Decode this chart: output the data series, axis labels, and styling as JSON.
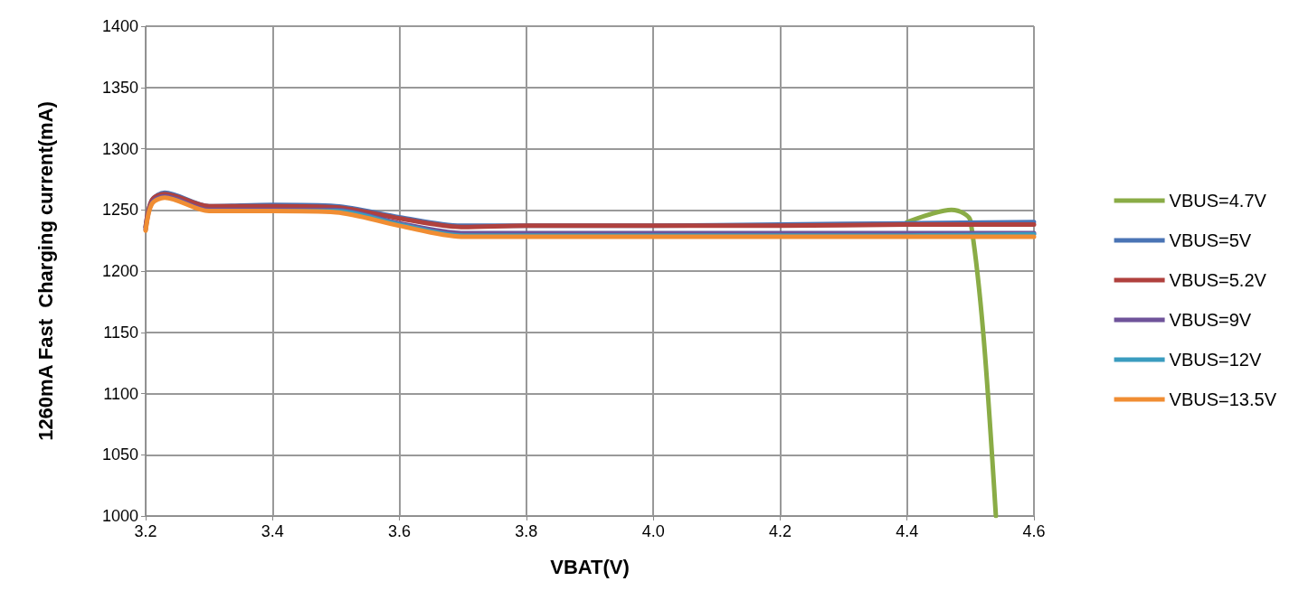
{
  "chart_data": {
    "type": "line",
    "xlabel": "VBAT(V)",
    "ylabel": "1260mA Fast  Charging current(mA)",
    "xlim": [
      3.2,
      4.6
    ],
    "xticks": [
      {
        "value": 3.2,
        "label": "3.2"
      },
      {
        "value": 3.4,
        "label": "3.4"
      },
      {
        "value": 3.6,
        "label": "3.6"
      },
      {
        "value": 3.8,
        "label": "3.8"
      },
      {
        "value": 4.0,
        "label": "4.0"
      },
      {
        "value": 4.2,
        "label": "4.2"
      },
      {
        "value": 4.4,
        "label": "4.4"
      },
      {
        "value": 4.6,
        "label": "4.6"
      }
    ],
    "ylim": [
      1000,
      1400
    ],
    "yticks": [
      1000,
      1050,
      1100,
      1150,
      1200,
      1250,
      1300,
      1350,
      1400
    ],
    "grid": true,
    "legend": "right",
    "marker": "none",
    "line_style": "solid",
    "series": [
      {
        "name": "VBUS=4.7V",
        "color": "#8aac46",
        "x": [
          4.4,
          4.44,
          4.47,
          4.49,
          4.5,
          4.52,
          4.54
        ],
        "values": [
          1240,
          1247,
          1250,
          1247,
          1241,
          1150,
          1000
        ]
      },
      {
        "name": "VBUS=5V",
        "color": "#4a74b5",
        "x": [
          3.2,
          3.21,
          3.23,
          3.3,
          3.4,
          3.5,
          3.6,
          3.7,
          3.8,
          4.0,
          4.2,
          4.4,
          4.6
        ],
        "values": [
          1236,
          1258,
          1264,
          1253,
          1254,
          1253,
          1244,
          1237,
          1237,
          1237,
          1238,
          1239,
          1240
        ]
      },
      {
        "name": "VBUS=5.2V",
        "color": "#b0413e",
        "x": [
          3.2,
          3.21,
          3.23,
          3.3,
          3.4,
          3.5,
          3.6,
          3.7,
          3.8,
          4.0,
          4.2,
          4.4,
          4.6
        ],
        "values": [
          1236,
          1258,
          1263,
          1253,
          1253,
          1252,
          1243,
          1236,
          1237,
          1237,
          1237,
          1238,
          1238
        ]
      },
      {
        "name": "VBUS=9V",
        "color": "#6f539a",
        "x": [
          3.2,
          3.21,
          3.23,
          3.3,
          3.4,
          3.5,
          3.6,
          3.7,
          3.8,
          4.0,
          4.2,
          4.4,
          4.6
        ],
        "values": [
          1234,
          1256,
          1261,
          1250,
          1250,
          1250,
          1239,
          1231,
          1231,
          1231,
          1231,
          1231,
          1231
        ]
      },
      {
        "name": "VBUS=12V",
        "color": "#3a9cbf",
        "x": [
          3.4,
          3.5,
          3.6,
          3.7,
          3.8,
          4.0,
          4.2,
          4.4,
          4.6
        ],
        "values": [
          1249,
          1249,
          1238,
          1229,
          1229,
          1229,
          1229,
          1229,
          1230
        ]
      },
      {
        "name": "VBUS=13.5V",
        "color": "#f08d33",
        "x": [
          3.2,
          3.21,
          3.23,
          3.3,
          3.4,
          3.5,
          3.6,
          3.7,
          3.8,
          4.0,
          4.2,
          4.4,
          4.6
        ],
        "values": [
          1233,
          1255,
          1260,
          1249,
          1249,
          1248,
          1237,
          1228,
          1228,
          1228,
          1228,
          1228,
          1228
        ]
      }
    ]
  }
}
